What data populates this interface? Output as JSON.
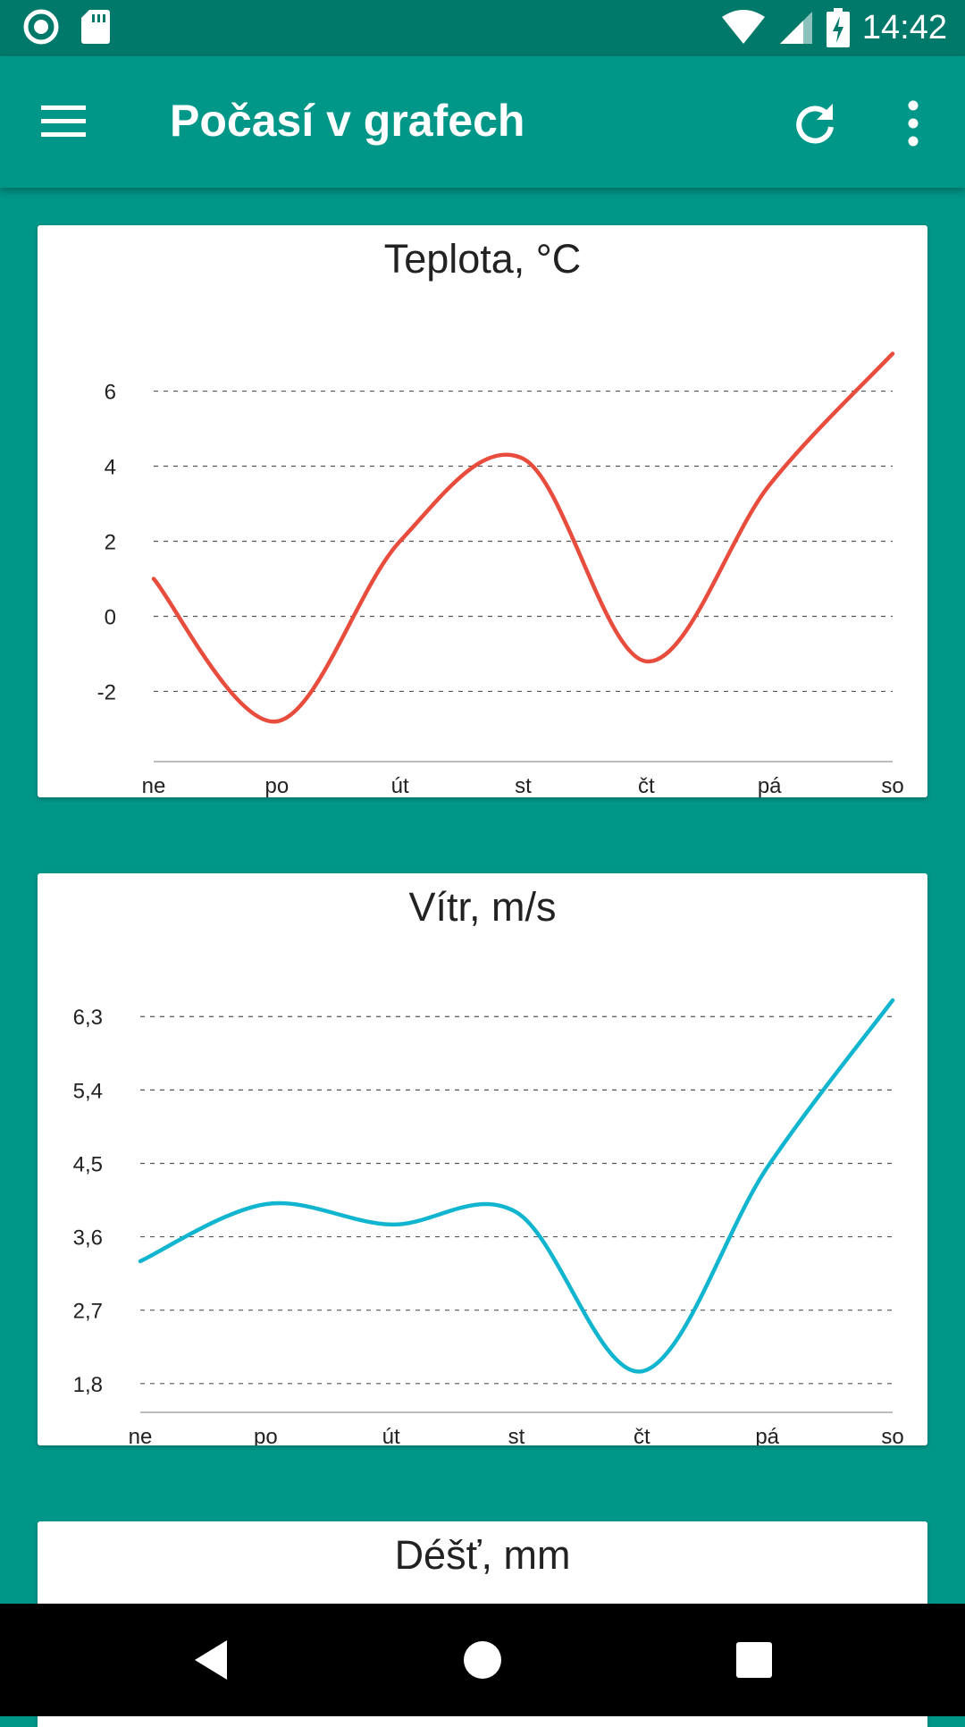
{
  "status_bar": {
    "time": "14:42",
    "icons": [
      "record-icon",
      "sd-card-icon",
      "wifi-icon",
      "signal-icon",
      "battery-charging-icon"
    ]
  },
  "app_bar": {
    "title": "Počasí v grafech",
    "icons": [
      "menu-icon",
      "refresh-icon",
      "more-vert-icon"
    ]
  },
  "colors": {
    "primary": "#009688",
    "primary_dark": "#00796b",
    "temperature_line": "#e74c3c",
    "wind_line": "#12b5cf"
  },
  "cards": {
    "temperature": {
      "title": "Teplota, °C"
    },
    "wind": {
      "title": "Vítr, m/s"
    },
    "rain": {
      "title": "Déšť, mm"
    }
  },
  "chart_data": [
    {
      "type": "line",
      "title": "Teplota, °C",
      "categories": [
        "ne",
        "po",
        "út",
        "st",
        "čt",
        "pá",
        "so"
      ],
      "series": [
        {
          "values": [
            1.0,
            -2.8,
            2.0,
            4.2,
            -1.2,
            3.5,
            7.0
          ]
        }
      ],
      "yticks": [
        "-2",
        "0",
        "2",
        "4",
        "6"
      ],
      "ytick_values": [
        -2,
        0,
        2,
        4,
        6
      ],
      "ylim": [
        -3.8,
        7.8
      ],
      "grid": true,
      "color": "#e74c3c"
    },
    {
      "type": "line",
      "title": "Vítr, m/s",
      "categories": [
        "ne",
        "po",
        "út",
        "st",
        "čt",
        "pá",
        "so"
      ],
      "series": [
        {
          "values": [
            3.3,
            4.0,
            3.75,
            3.9,
            1.95,
            4.45,
            6.5
          ]
        }
      ],
      "yticks": [
        "1,8",
        "2,7",
        "3,6",
        "4,5",
        "5,4",
        "6,3"
      ],
      "ytick_values": [
        1.8,
        2.7,
        3.6,
        4.5,
        5.4,
        6.3
      ],
      "ylim": [
        1.48,
        6.5
      ],
      "grid": true,
      "color": "#12b5cf"
    }
  ],
  "nav_bar": {
    "icons": [
      "back-icon",
      "home-icon",
      "recents-icon"
    ]
  }
}
